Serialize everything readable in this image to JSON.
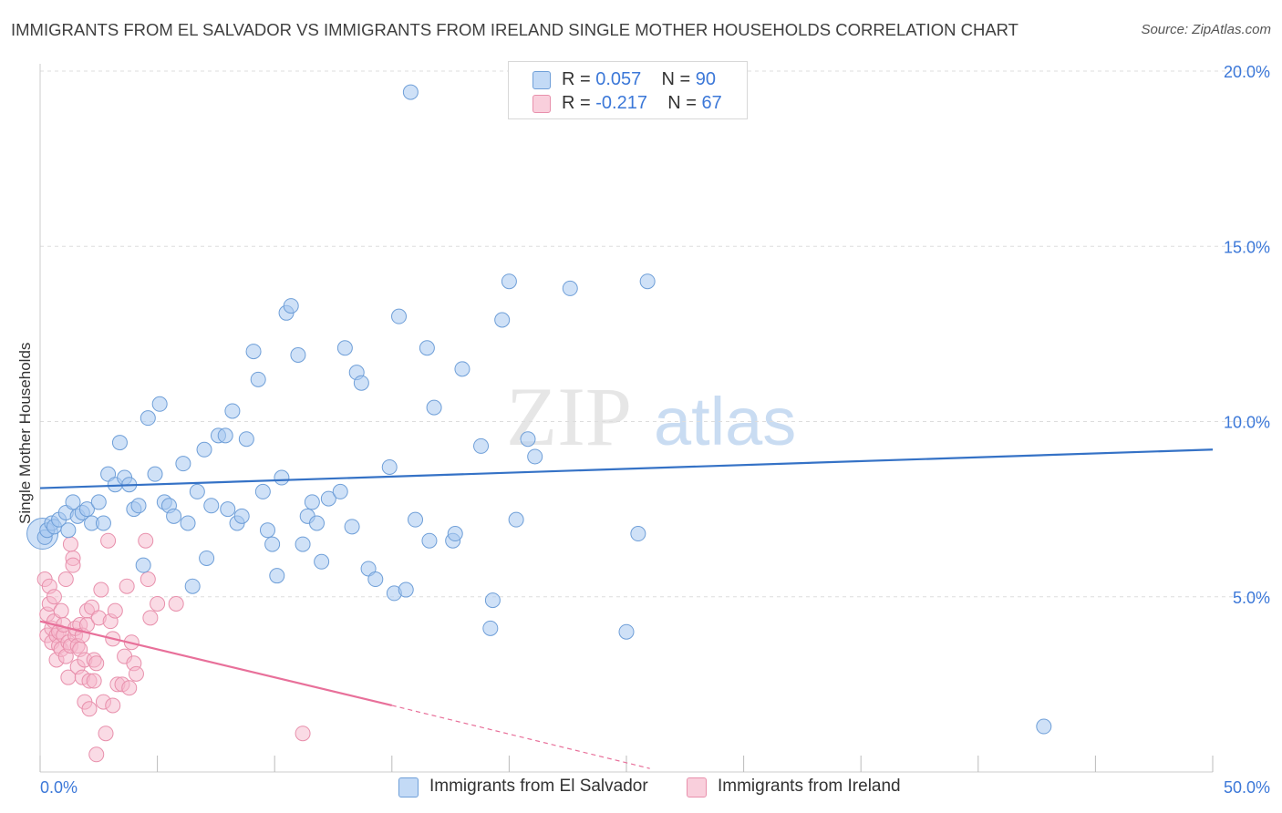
{
  "title": "IMMIGRANTS FROM EL SALVADOR VS IMMIGRANTS FROM IRELAND SINGLE MOTHER HOUSEHOLDS CORRELATION CHART",
  "source": "Source: ZipAtlas.com",
  "watermark": {
    "zip": "ZIP",
    "atlas": "atlas"
  },
  "legend": {
    "row1": {
      "r_label": "R =",
      "r_value": "0.057",
      "n_label": "N =",
      "n_value": "90"
    },
    "row2": {
      "r_label": "R =",
      "r_value": "-0.217",
      "n_label": "N =",
      "n_value": "67"
    }
  },
  "colors": {
    "blue_fill": "#a8c8f0",
    "blue_stroke": "#6f9fd8",
    "blue_line": "#3572c6",
    "pink_fill": "#f6b8cc",
    "pink_stroke": "#e890ac",
    "pink_line": "#e8709a",
    "tick_text": "#3c78d8",
    "grid": "#dddddd"
  },
  "chart_data": {
    "type": "scatter",
    "title": "IMMIGRANTS FROM EL SALVADOR VS IMMIGRANTS FROM IRELAND SINGLE MOTHER HOUSEHOLDS CORRELATION CHART",
    "xlabel": "",
    "ylabel": "Single Mother Households",
    "xlim": [
      0,
      50
    ],
    "ylim": [
      0,
      20
    ],
    "x_tick_labels": [
      "0.0%",
      "50.0%"
    ],
    "y_tick_labels": [
      "5.0%",
      "10.0%",
      "15.0%",
      "20.0%"
    ],
    "y_ticks": [
      5,
      10,
      15,
      20
    ],
    "grid": true,
    "legend_position": "top-center",
    "series": [
      {
        "name": "Immigrants from El Salvador",
        "color": "#a8c8f0",
        "trend": {
          "x": [
            0,
            50
          ],
          "y": [
            8.1,
            9.2
          ]
        },
        "points": [
          [
            0.2,
            6.7
          ],
          [
            0.3,
            6.9
          ],
          [
            0.5,
            7.1
          ],
          [
            0.6,
            7.0
          ],
          [
            0.8,
            7.2
          ],
          [
            1.1,
            7.4
          ],
          [
            1.2,
            6.9
          ],
          [
            1.4,
            7.7
          ],
          [
            1.6,
            7.3
          ],
          [
            1.8,
            7.4
          ],
          [
            2.0,
            7.5
          ],
          [
            2.2,
            7.1
          ],
          [
            2.5,
            7.7
          ],
          [
            2.7,
            7.1
          ],
          [
            2.9,
            8.5
          ],
          [
            3.2,
            8.2
          ],
          [
            3.4,
            9.4
          ],
          [
            3.6,
            8.4
          ],
          [
            3.8,
            8.2
          ],
          [
            4.0,
            7.5
          ],
          [
            4.2,
            7.6
          ],
          [
            4.4,
            5.9
          ],
          [
            4.6,
            10.1
          ],
          [
            4.9,
            8.5
          ],
          [
            5.1,
            10.5
          ],
          [
            5.3,
            7.7
          ],
          [
            5.5,
            7.6
          ],
          [
            5.7,
            7.3
          ],
          [
            6.1,
            8.8
          ],
          [
            6.3,
            7.1
          ],
          [
            6.5,
            5.3
          ],
          [
            6.7,
            8.0
          ],
          [
            7.0,
            9.2
          ],
          [
            7.1,
            6.1
          ],
          [
            7.3,
            7.6
          ],
          [
            7.6,
            9.6
          ],
          [
            7.9,
            9.6
          ],
          [
            8.0,
            7.5
          ],
          [
            8.2,
            10.3
          ],
          [
            8.4,
            7.1
          ],
          [
            8.6,
            7.3
          ],
          [
            8.8,
            9.5
          ],
          [
            9.1,
            12.0
          ],
          [
            9.3,
            11.2
          ],
          [
            9.5,
            8.0
          ],
          [
            9.7,
            6.9
          ],
          [
            9.9,
            6.5
          ],
          [
            10.1,
            5.6
          ],
          [
            10.3,
            8.4
          ],
          [
            10.5,
            13.1
          ],
          [
            10.7,
            13.3
          ],
          [
            11.0,
            11.9
          ],
          [
            11.2,
            6.5
          ],
          [
            11.4,
            7.3
          ],
          [
            11.6,
            7.7
          ],
          [
            11.8,
            7.1
          ],
          [
            12.0,
            6.0
          ],
          [
            12.3,
            7.8
          ],
          [
            12.8,
            8.0
          ],
          [
            13.0,
            12.1
          ],
          [
            13.3,
            7.0
          ],
          [
            13.5,
            11.4
          ],
          [
            13.7,
            11.1
          ],
          [
            14.0,
            5.8
          ],
          [
            14.3,
            5.5
          ],
          [
            14.9,
            8.7
          ],
          [
            15.1,
            5.1
          ],
          [
            15.3,
            13.0
          ],
          [
            15.6,
            5.2
          ],
          [
            15.8,
            19.4
          ],
          [
            16.0,
            7.2
          ],
          [
            16.6,
            6.6
          ],
          [
            16.5,
            12.1
          ],
          [
            16.8,
            10.4
          ],
          [
            17.6,
            6.6
          ],
          [
            17.7,
            6.8
          ],
          [
            18.0,
            11.5
          ],
          [
            18.8,
            9.3
          ],
          [
            19.2,
            4.1
          ],
          [
            19.3,
            4.9
          ],
          [
            19.7,
            12.9
          ],
          [
            20.0,
            14.0
          ],
          [
            20.3,
            7.2
          ],
          [
            20.8,
            9.5
          ],
          [
            21.1,
            9.0
          ],
          [
            22.6,
            13.8
          ],
          [
            25.0,
            4.0
          ],
          [
            25.5,
            6.8
          ],
          [
            25.9,
            14.0
          ],
          [
            42.8,
            1.3
          ]
        ]
      },
      {
        "name": "Immigrants from Ireland",
        "color": "#f6b8cc",
        "trend": {
          "x": [
            0,
            15
          ],
          "y": [
            4.3,
            1.9
          ]
        },
        "trend_dashed": {
          "x": [
            15,
            26
          ],
          "y": [
            1.9,
            0.1
          ]
        },
        "points": [
          [
            0.2,
            5.5
          ],
          [
            0.3,
            3.9
          ],
          [
            0.3,
            4.5
          ],
          [
            0.4,
            5.3
          ],
          [
            0.4,
            4.8
          ],
          [
            0.5,
            3.7
          ],
          [
            0.5,
            4.1
          ],
          [
            0.6,
            5.0
          ],
          [
            0.6,
            4.3
          ],
          [
            0.7,
            3.9
          ],
          [
            0.7,
            3.2
          ],
          [
            0.8,
            3.6
          ],
          [
            0.8,
            4.0
          ],
          [
            0.9,
            3.5
          ],
          [
            0.9,
            4.6
          ],
          [
            1.0,
            3.9
          ],
          [
            1.0,
            4.2
          ],
          [
            1.1,
            5.5
          ],
          [
            1.1,
            3.3
          ],
          [
            1.2,
            3.7
          ],
          [
            1.2,
            2.7
          ],
          [
            1.3,
            6.5
          ],
          [
            1.3,
            3.6
          ],
          [
            1.4,
            6.1
          ],
          [
            1.4,
            5.9
          ],
          [
            1.5,
            3.9
          ],
          [
            1.5,
            4.1
          ],
          [
            1.6,
            3.0
          ],
          [
            1.6,
            3.6
          ],
          [
            1.7,
            3.5
          ],
          [
            1.7,
            4.2
          ],
          [
            1.8,
            2.7
          ],
          [
            1.8,
            3.9
          ],
          [
            1.9,
            3.2
          ],
          [
            1.9,
            2.0
          ],
          [
            2.0,
            4.6
          ],
          [
            2.0,
            4.2
          ],
          [
            2.1,
            2.6
          ],
          [
            2.1,
            1.8
          ],
          [
            2.2,
            4.7
          ],
          [
            2.3,
            3.2
          ],
          [
            2.3,
            2.6
          ],
          [
            2.4,
            3.1
          ],
          [
            2.5,
            4.4
          ],
          [
            2.6,
            5.2
          ],
          [
            2.7,
            2.0
          ],
          [
            2.8,
            1.1
          ],
          [
            2.9,
            6.6
          ],
          [
            3.0,
            4.3
          ],
          [
            3.1,
            3.8
          ],
          [
            3.1,
            1.9
          ],
          [
            3.2,
            4.6
          ],
          [
            3.3,
            2.5
          ],
          [
            3.5,
            2.5
          ],
          [
            3.6,
            3.3
          ],
          [
            3.7,
            5.3
          ],
          [
            3.8,
            2.4
          ],
          [
            3.9,
            3.7
          ],
          [
            4.0,
            3.1
          ],
          [
            4.1,
            2.8
          ],
          [
            4.5,
            6.6
          ],
          [
            4.6,
            5.5
          ],
          [
            4.7,
            4.4
          ],
          [
            5.0,
            4.8
          ],
          [
            2.4,
            0.5
          ],
          [
            11.2,
            1.1
          ],
          [
            5.8,
            4.8
          ]
        ]
      }
    ]
  },
  "bottom_legend": {
    "item1": "Immigrants from El Salvador",
    "item2": "Immigrants from Ireland"
  }
}
